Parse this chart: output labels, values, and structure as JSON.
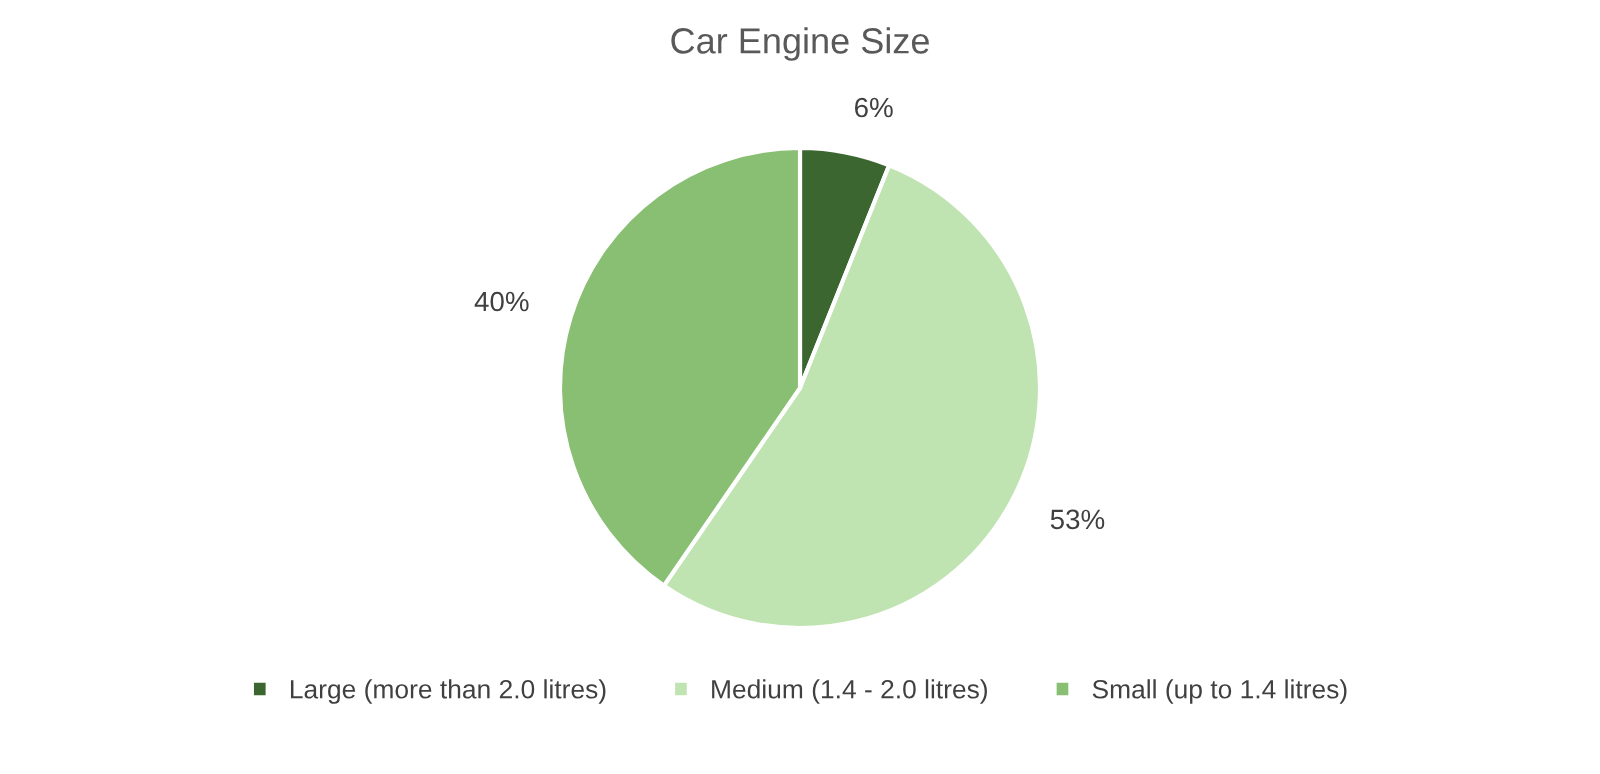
{
  "chart_data": {
    "type": "pie",
    "title": "Car Engine Size",
    "categories": [
      "Large (more than 2.0 litres)",
      "Medium (1.4 - 2.0 litres)",
      "Small (up to 1.4 litres)"
    ],
    "values": [
      6,
      53,
      40
    ],
    "colors": [
      "#3b662f",
      "#bfe4b1",
      "#88bf72"
    ],
    "value_labels": [
      "6%",
      "53%",
      "40%"
    ],
    "legend": "bottom"
  }
}
